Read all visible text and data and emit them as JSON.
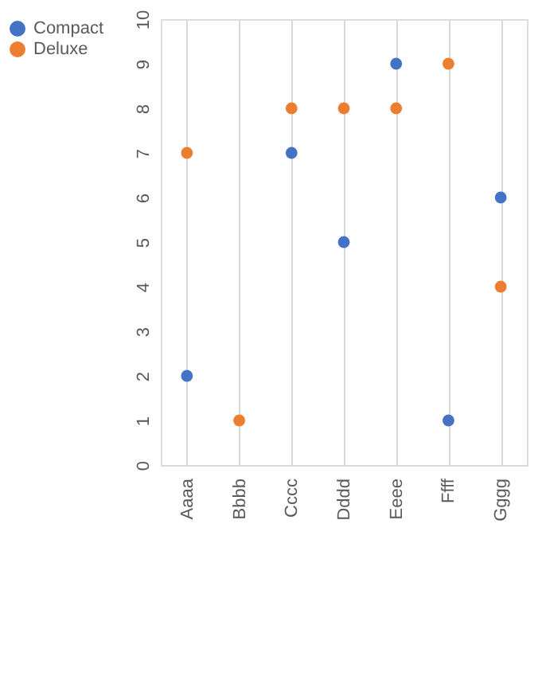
{
  "chart_data": {
    "type": "scatter",
    "categories": [
      "Aaaa",
      "Bbbb",
      "Cccc",
      "Dddd",
      "Eeee",
      "Ffff",
      "Gggg"
    ],
    "series": [
      {
        "name": "Compact",
        "color": "#4472c4",
        "values": [
          2,
          null,
          7,
          5,
          9,
          1,
          6
        ]
      },
      {
        "name": "Deluxe",
        "color": "#ed7d31",
        "values": [
          7,
          1,
          8,
          8,
          8,
          9,
          4
        ]
      }
    ],
    "ylim": [
      0,
      10
    ],
    "yticks": [
      0,
      1,
      2,
      3,
      4,
      5,
      6,
      7,
      8,
      9,
      10
    ],
    "grid": "x",
    "legend": "left",
    "marker": "circle"
  }
}
